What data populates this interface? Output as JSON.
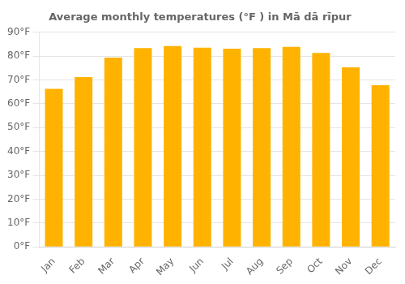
{
  "chart_data": {
    "type": "bar",
    "title": "Average monthly temperatures (°F ) in Mā dā rīpur",
    "categories": [
      "Jan",
      "Feb",
      "Mar",
      "Apr",
      "May",
      "Jun",
      "Jul",
      "Aug",
      "Sep",
      "Oct",
      "Nov",
      "Dec"
    ],
    "values": [
      66.2,
      71.2,
      79.3,
      83.3,
      84.2,
      83.5,
      83.1,
      83.3,
      83.8,
      81.3,
      75.2,
      67.8
    ],
    "color": "#FFB300",
    "ylim": [
      0,
      90
    ],
    "yticks": [
      {
        "value": 0,
        "label": "0°F"
      },
      {
        "value": 10,
        "label": "10°F"
      },
      {
        "value": 20,
        "label": "20°F"
      },
      {
        "value": 30,
        "label": "30°F"
      },
      {
        "value": 40,
        "label": "40°F"
      },
      {
        "value": 50,
        "label": "50°F"
      },
      {
        "value": 60,
        "label": "60°F"
      },
      {
        "value": 70,
        "label": "70°F"
      },
      {
        "value": 80,
        "label": "80°F"
      },
      {
        "value": 90,
        "label": "90°F"
      }
    ],
    "grid": true
  }
}
